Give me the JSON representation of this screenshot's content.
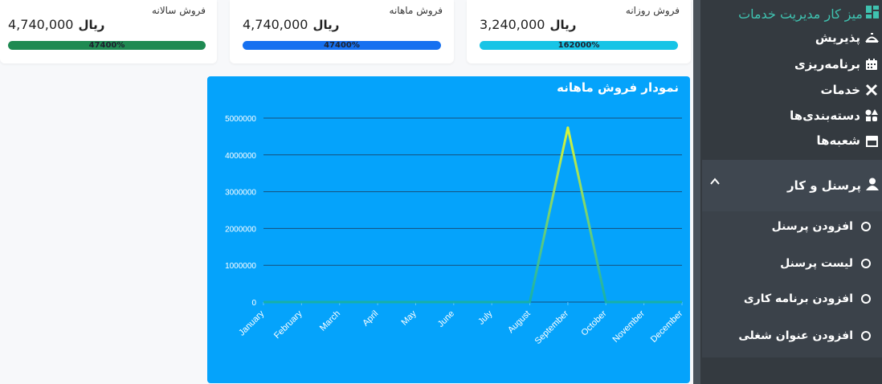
{
  "stats": [
    {
      "title": "فروش سالانه",
      "amount": "4,740,000",
      "currency": "ریال",
      "percent_label": "47400%",
      "color": "#1f8a52",
      "fill": 1.0
    },
    {
      "title": "فروش ماهانه",
      "amount": "4,740,000",
      "currency": "ریال",
      "percent_label": "47400%",
      "color": "#1670f0",
      "fill": 1.0
    },
    {
      "title": "فروش روزانه",
      "amount": "3,240,000",
      "currency": "ریال",
      "percent_label": "162000%",
      "color": "#17c4e6",
      "fill": 1.0
    }
  ],
  "chart": {
    "title": "نمودار فروش ماهانه"
  },
  "chart_data": {
    "type": "line",
    "categories": [
      "January",
      "February",
      "March",
      "April",
      "May",
      "June",
      "July",
      "August",
      "September",
      "October",
      "November",
      "December"
    ],
    "series": [
      {
        "values": [
          0,
          0,
          0,
          0,
          0,
          0,
          0,
          0,
          4740000,
          0,
          0,
          0
        ]
      }
    ],
    "ylim": [
      0,
      5000000
    ],
    "yticks": [
      0,
      1000000,
      2000000,
      3000000,
      4000000,
      5000000
    ],
    "grid": true,
    "colors": {
      "line_top": "#d8f53a",
      "line_bottom": "#17b0a8",
      "background": "#05a3fb"
    }
  },
  "sidebar": {
    "brand": "میز کار مدیریت خدمات",
    "items": [
      {
        "label": "پذیریش",
        "icon": "reception-icon"
      },
      {
        "label": "برنامه‌ریزی",
        "icon": "calendar-icon"
      },
      {
        "label": "خدمات",
        "icon": "tools-icon"
      },
      {
        "label": "دسته‌بندی‌ها",
        "icon": "shapes-icon"
      },
      {
        "label": "شعبه‌ها",
        "icon": "store-icon"
      }
    ],
    "section": {
      "label": "پرسنل و کار",
      "icon": "user-icon",
      "expanded": true
    },
    "sub_items": [
      {
        "label": "افزودن پرسنل"
      },
      {
        "label": "لیست پرسنل"
      },
      {
        "label": "افزودن برنامه کاری"
      },
      {
        "label": "افزودن عنوان شغلی"
      }
    ]
  }
}
